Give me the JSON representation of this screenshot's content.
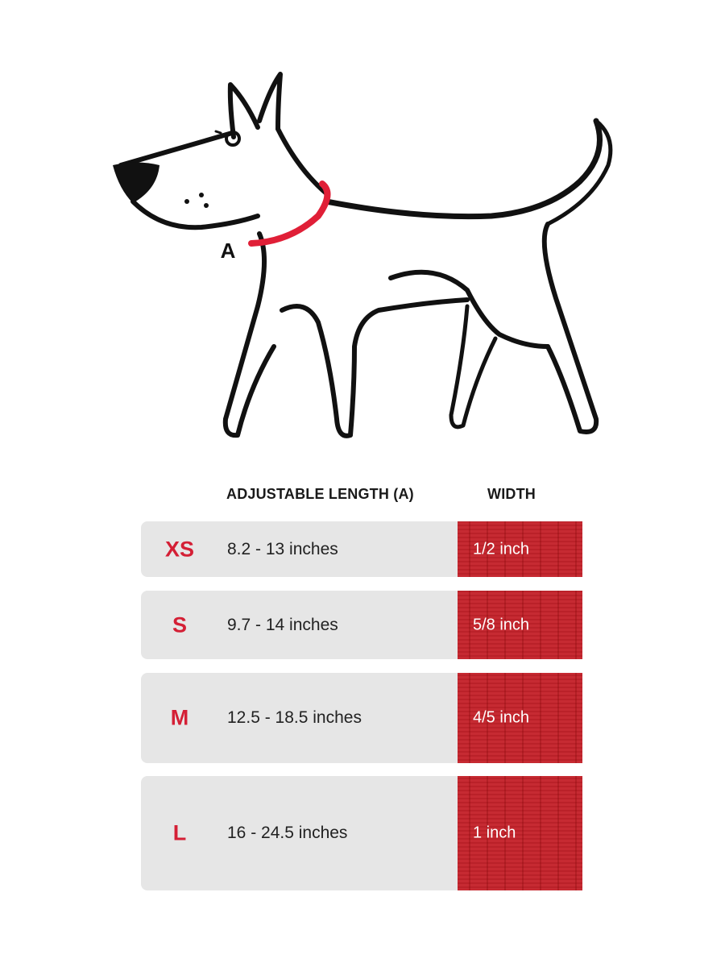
{
  "illustration": {
    "label": "A",
    "collar_color": "#e01f37"
  },
  "table": {
    "headers": {
      "length": "ADJUSTABLE LENGTH (A)",
      "width": "WIDTH"
    },
    "rows": [
      {
        "size": "XS",
        "length": "8.2 - 13 inches",
        "width": "1/2 inch"
      },
      {
        "size": "S",
        "length": "9.7 - 14 inches",
        "width": "5/8 inch"
      },
      {
        "size": "M",
        "length": "12.5 - 18.5 inches",
        "width": "4/5 inch"
      },
      {
        "size": "L",
        "length": "16 - 24.5 inches",
        "width": "1 inch"
      }
    ],
    "colors": {
      "size_text": "#d41f35",
      "width_cell": "#c4232b",
      "row_bg": "#e6e6e6"
    }
  }
}
